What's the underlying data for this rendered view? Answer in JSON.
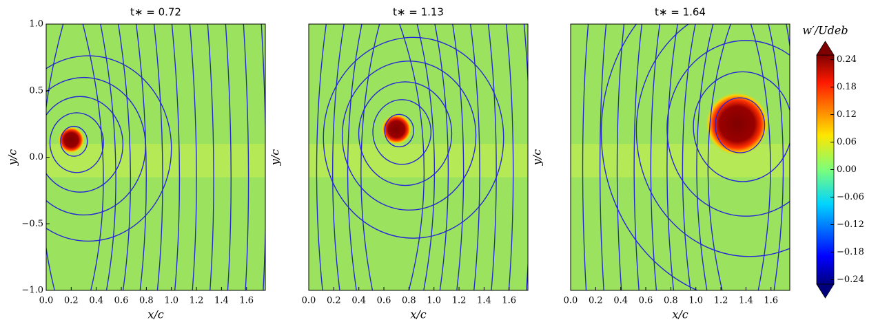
{
  "chart_data": [
    {
      "type": "heatmap",
      "title": "t∗ = 0.72",
      "xlabel": "x/c",
      "ylabel": "y/c",
      "xlim": [
        0,
        1.75
      ],
      "ylim": [
        -1,
        1
      ],
      "xticks": [
        {
          "value": 0,
          "label": "0.0"
        },
        {
          "value": 0.2,
          "label": "0.2"
        },
        {
          "value": 0.4,
          "label": "0.4"
        },
        {
          "value": 0.6,
          "label": "0.6"
        },
        {
          "value": 0.8,
          "label": "0.8"
        },
        {
          "value": 1,
          "label": "1.0"
        },
        {
          "value": 1.2,
          "label": "1.2"
        },
        {
          "value": 1.4,
          "label": "1.4"
        },
        {
          "value": 1.6,
          "label": "1.6"
        }
      ],
      "yticks": [
        {
          "value": -1,
          "label": "−1.0"
        },
        {
          "value": -0.5,
          "label": "−0.5"
        },
        {
          "value": 0,
          "label": "0.0"
        },
        {
          "value": 0.5,
          "label": "0.5"
        },
        {
          "value": 1,
          "label": "1.0"
        }
      ],
      "vortex": {
        "x": 0.2,
        "y": 0.13,
        "r": 0.07
      }
    },
    {
      "type": "heatmap",
      "title": "t∗ = 1.13",
      "xlabel": "x/c",
      "ylabel": "y/c",
      "xlim": [
        0,
        1.75
      ],
      "ylim": [
        -1,
        1
      ],
      "xticks": [
        {
          "value": 0,
          "label": "0.0"
        },
        {
          "value": 0.2,
          "label": "0.2"
        },
        {
          "value": 0.4,
          "label": "0.4"
        },
        {
          "value": 0.6,
          "label": "0.6"
        },
        {
          "value": 0.8,
          "label": "0.8"
        },
        {
          "value": 1,
          "label": "1.0"
        },
        {
          "value": 1.2,
          "label": "1.2"
        },
        {
          "value": 1.4,
          "label": "1.4"
        },
        {
          "value": 1.6,
          "label": "1.6"
        }
      ],
      "vortex": {
        "x": 0.7,
        "y": 0.21,
        "r": 0.08
      }
    },
    {
      "type": "heatmap",
      "title": "t∗ = 1.64",
      "xlabel": "x/c",
      "ylabel": "y/c",
      "xlim": [
        0,
        1.75
      ],
      "ylim": [
        -1,
        1
      ],
      "xticks": [
        {
          "value": 0,
          "label": "0.0"
        },
        {
          "value": 0.2,
          "label": "0.2"
        },
        {
          "value": 0.4,
          "label": "0.4"
        },
        {
          "value": 0.6,
          "label": "0.6"
        },
        {
          "value": 0.8,
          "label": "0.8"
        },
        {
          "value": 1,
          "label": "1.0"
        },
        {
          "value": 1.2,
          "label": "1.2"
        },
        {
          "value": 1.4,
          "label": "1.4"
        },
        {
          "value": 1.6,
          "label": "1.6"
        }
      ],
      "vortex": {
        "x": 1.33,
        "y": 0.25,
        "r": 0.17
      }
    }
  ],
  "colorbar": {
    "label": "w′/Udeb",
    "lim": [
      -0.25,
      0.25
    ],
    "ticks": [
      {
        "value": 0.24,
        "label": "0.24"
      },
      {
        "value": 0.18,
        "label": "0.18"
      },
      {
        "value": 0.12,
        "label": "0.12"
      },
      {
        "value": 0.06,
        "label": "0.06"
      },
      {
        "value": 0,
        "label": "0.00"
      },
      {
        "value": -0.06,
        "label": "−0.06"
      },
      {
        "value": -0.12,
        "label": "−0.12"
      },
      {
        "value": -0.18,
        "label": "−0.18"
      },
      {
        "value": -0.24,
        "label": "−0.24"
      }
    ]
  }
}
